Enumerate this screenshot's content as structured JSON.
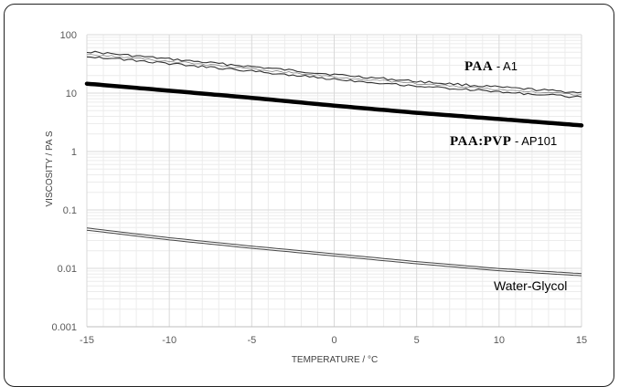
{
  "chart_data": {
    "type": "line",
    "xlabel": "TEMPERATURE / °C",
    "ylabel": "VISCOSITY / PA S",
    "xlim": [
      -15,
      15
    ],
    "ylim": [
      0.001,
      100
    ],
    "y_scale": "log",
    "grid": true,
    "x_ticks": [
      "-15",
      "-10",
      "-5",
      "0",
      "5",
      "10",
      "15"
    ],
    "y_ticks": [
      "0.001",
      "0.01",
      "0.1",
      "1",
      "10",
      "100"
    ],
    "series": [
      {
        "name_main": "PAA",
        "name_suffix": " - A1",
        "style": "hollow-band",
        "x": [
          -15,
          -10,
          -5,
          0,
          5,
          10,
          15
        ],
        "values": [
          47,
          35,
          26,
          19,
          14.5,
          11.5,
          9.3
        ]
      },
      {
        "name_main": "PAA:PVP",
        "name_suffix": " - AP101",
        "style": "thick",
        "x": [
          -15,
          -10,
          -5,
          0,
          5,
          10,
          15
        ],
        "values": [
          14.5,
          11,
          8.3,
          6.1,
          4.6,
          3.6,
          2.8
        ]
      },
      {
        "name_main": "Water-Glycol",
        "name_suffix": "",
        "style": "thin-double",
        "x": [
          -15,
          -10,
          -5,
          0,
          5,
          10,
          15
        ],
        "values": [
          0.047,
          0.032,
          0.023,
          0.017,
          0.0125,
          0.0095,
          0.0078
        ]
      }
    ]
  }
}
